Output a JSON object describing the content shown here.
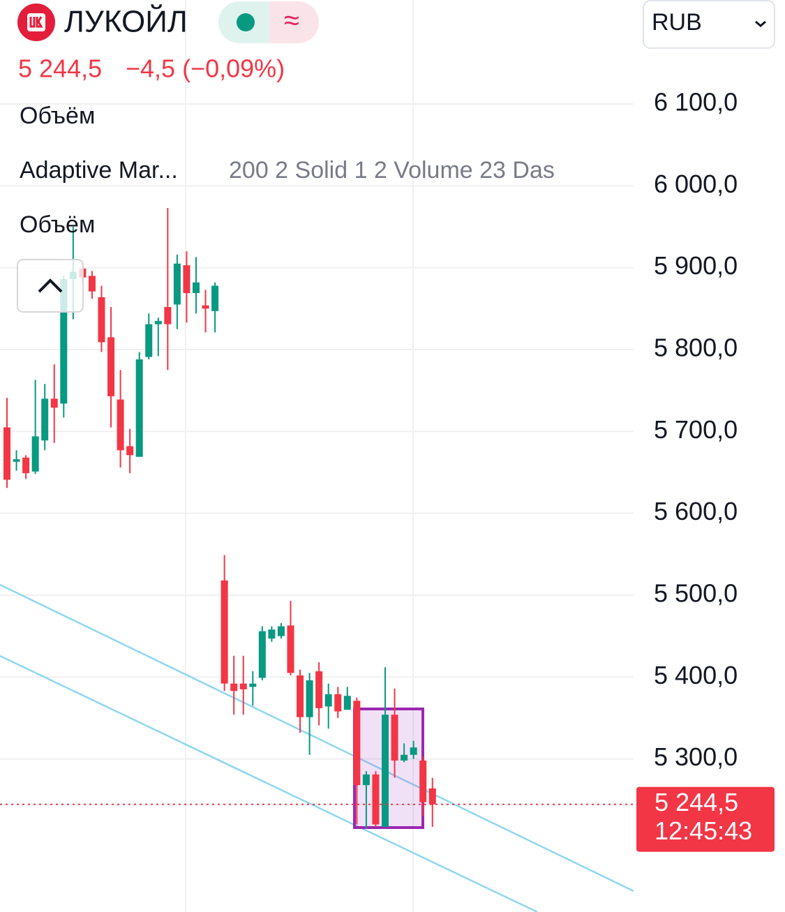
{
  "header": {
    "name": "ЛУКОЙЛ",
    "change": "−4,5 (−0,09%)",
    "currency": "RUB"
  },
  "indicators": [
    "Объём",
    "Adaptive Mar...",
    "Объём"
  ],
  "indicator_params": "200 2 Solid 1 2 Volume 23 Das",
  "chart_data": {
    "type": "candlestick",
    "up_color": "#089981",
    "down_color": "#f23645",
    "open": [
      5705,
      5663,
      5668,
      5651,
      5689,
      5740,
      5734,
      5886,
      5899,
      5890,
      5864,
      5815,
      5739,
      5682,
      5669,
      5791,
      5831,
      5852,
      5855,
      5903,
      5869,
      5854,
      5847,
      5518,
      5392,
      5392,
      5388,
      5399,
      5447,
      5450,
      5463,
      5402,
      5351,
      5407,
      5364,
      5379,
      5360,
      5371,
      5268,
      5281,
      5217,
      5354,
      5298,
      5305,
      5298,
      5264
    ],
    "high": [
      5741,
      5677,
      5671,
      5763,
      5758,
      5782,
      5890,
      5950,
      5905,
      5896,
      5878,
      5852,
      5775,
      5703,
      5797,
      5844,
      5839,
      5973,
      5916,
      5920,
      5913,
      5873,
      5882,
      5549,
      5426,
      5426,
      5407,
      5462,
      5462,
      5466,
      5493,
      5409,
      5405,
      5418,
      5392,
      5388,
      5388,
      5375,
      5285,
      5285,
      5412,
      5386,
      5319,
      5322,
      5303,
      5277
    ],
    "low": [
      5631,
      5652,
      5642,
      5648,
      5677,
      5686,
      5717,
      5837,
      5882,
      5862,
      5797,
      5705,
      5656,
      5649,
      5669,
      5788,
      5792,
      5775,
      5825,
      5833,
      5844,
      5821,
      5821,
      5383,
      5354,
      5354,
      5365,
      5396,
      5443,
      5447,
      5402,
      5332,
      5305,
      5341,
      5337,
      5350,
      5360,
      5220,
      5215,
      5217,
      5217,
      5277,
      5296,
      5300,
      5230,
      5217
    ],
    "close": [
      5641,
      5666,
      5649,
      5694,
      5740,
      5729,
      5886,
      5895,
      5888,
      5871,
      5809,
      5743,
      5677,
      5671,
      5788,
      5831,
      5835,
      5831,
      5905,
      5869,
      5882,
      5850,
      5878,
      5392,
      5383,
      5385,
      5392,
      5456,
      5458,
      5462,
      5405,
      5351,
      5396,
      5362,
      5379,
      5358,
      5377,
      5268,
      5281,
      5220,
      5354,
      5298,
      5305,
      5314,
      5247,
      5244.5
    ],
    "ylim": [
      5113,
      6227
    ],
    "yticks": [
      {
        "value": 5300,
        "label": "5 300,0"
      },
      {
        "value": 5400,
        "label": "5 400,0"
      },
      {
        "value": 5500,
        "label": "5 500,0"
      },
      {
        "value": 5600,
        "label": "5 600,0"
      },
      {
        "value": 5700,
        "label": "5 700,0"
      },
      {
        "value": 5800,
        "label": "5 800,0"
      },
      {
        "value": 5900,
        "label": "5 900,0"
      },
      {
        "value": 6000,
        "label": "6 000,0"
      },
      {
        "value": 6100,
        "label": "6 100,0"
      }
    ],
    "grid": true,
    "last_price": {
      "value": 5244.5,
      "label": "5 244,5"
    },
    "last_time": "12:45:43"
  }
}
